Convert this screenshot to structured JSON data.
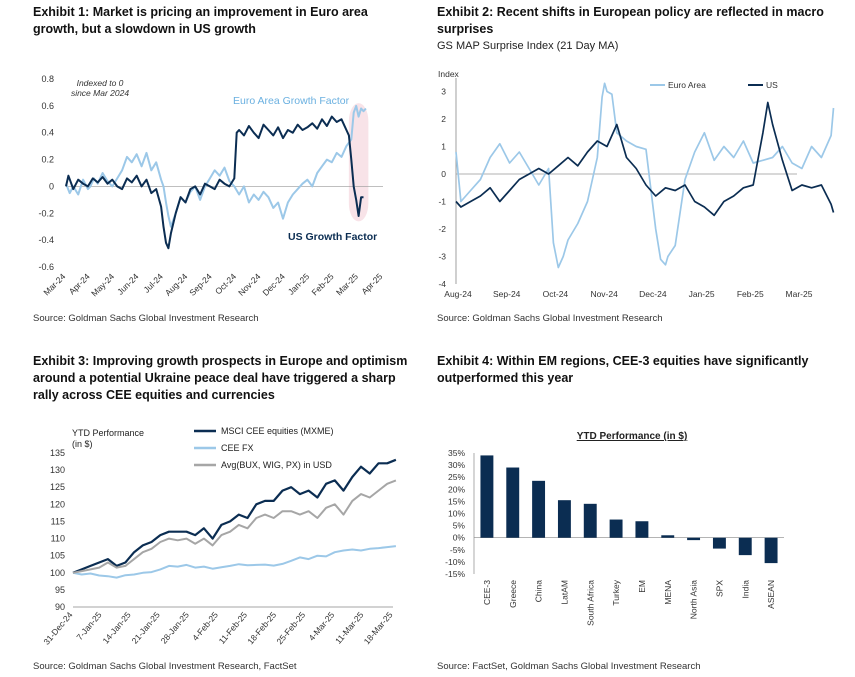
{
  "exhibits": [
    {
      "title": "Exhibit 1: Market is pricing an improvement in Euro area growth, but a slowdown in US growth",
      "source": "Source: Goldman Sachs Global Investment Research",
      "note": "Indexed to 0 since Mar 2024"
    },
    {
      "title": "Exhibit 2: Recent shifts in European policy are reflected in macro surprises",
      "subtitle": "GS MAP Surprise Index (21 Day MA)",
      "source": "Source: Goldman Sachs Global Investment Research"
    },
    {
      "title": "Exhibit 3: Improving growth prospects in Europe and optimism around a potential Ukraine peace deal have triggered a sharp rally across CEE equities and currencies",
      "source": "Source: Goldman Sachs Global Investment Research, FactSet"
    },
    {
      "title": "Exhibit 4: Within EM regions, CEE-3 equities have significantly outperformed this year",
      "source": "Source: FactSet, Goldman Sachs Global Investment Research"
    }
  ],
  "colors": {
    "navy": "#0b2d52",
    "light_blue": "#9cc8e8",
    "gray": "#a6a6a6",
    "highlight": "#f6dce2"
  },
  "chart_data": [
    {
      "type": "line",
      "title": "",
      "ylim": [
        -0.6,
        0.8
      ],
      "yticks": [
        "0.8",
        "0.6",
        "0.4",
        "0.2",
        "0",
        "-0.2",
        "-0.4",
        "-0.6"
      ],
      "xticks": [
        "Mar-24",
        "Apr-24",
        "May-24",
        "Jun-24",
        "Jul-24",
        "Aug-24",
        "Sep-24",
        "Oct-24",
        "Nov-24",
        "Dec-24",
        "Jan-25",
        "Feb-25",
        "Mar-25",
        "Apr-25"
      ],
      "annotations": [
        "Indexed to 0 since Mar 2024",
        "Euro Area Growth Factor",
        "US Growth Factor"
      ],
      "series": [
        {
          "name": "Euro Area Growth Factor",
          "color": "#9cc8e8",
          "x": [
            0,
            0.15,
            0.3,
            0.5,
            0.7,
            0.9,
            1.0,
            1.15,
            1.3,
            1.5,
            1.7,
            1.9,
            2.1,
            2.3,
            2.5,
            2.7,
            2.9,
            3.1,
            3.3,
            3.5,
            3.7,
            3.9,
            4.0,
            4.1,
            4.2,
            4.3,
            4.5,
            4.7,
            4.9,
            5.1,
            5.3,
            5.5,
            5.7,
            5.9,
            6.1,
            6.3,
            6.5,
            6.7,
            6.9,
            7.1,
            7.3,
            7.5,
            7.7,
            7.9,
            8.1,
            8.3,
            8.5,
            8.7,
            8.9,
            9.1,
            9.3,
            9.5,
            9.7,
            9.9,
            10.1,
            10.3,
            10.5,
            10.7,
            10.9,
            11.1,
            11.3,
            11.5,
            11.7,
            11.8,
            11.9,
            12.0,
            12.1,
            12.2,
            12.3
          ],
          "y": [
            0.02,
            -0.05,
            0.0,
            -0.06,
            0.05,
            -0.02,
            0.0,
            0.06,
            0.02,
            0.1,
            0.04,
            0.0,
            0.06,
            0.12,
            0.22,
            0.18,
            0.24,
            0.15,
            0.25,
            0.12,
            0.18,
            0.05,
            0.0,
            -0.12,
            -0.22,
            -0.3,
            -0.2,
            -0.08,
            -0.12,
            -0.04,
            0.0,
            -0.1,
            0.0,
            0.06,
            0.12,
            0.08,
            0.14,
            0.04,
            0.0,
            -0.06,
            0.0,
            -0.12,
            -0.06,
            -0.1,
            -0.04,
            -0.08,
            -0.16,
            -0.12,
            -0.24,
            -0.12,
            -0.06,
            -0.02,
            0.02,
            0.05,
            0.0,
            0.1,
            0.15,
            0.2,
            0.18,
            0.25,
            0.22,
            0.3,
            0.35,
            0.55,
            0.6,
            0.52,
            0.58,
            0.56,
            0.58
          ]
        },
        {
          "name": "US Growth Factor",
          "color": "#0b2d52",
          "x": [
            0,
            0.1,
            0.3,
            0.5,
            0.7,
            0.9,
            1.1,
            1.3,
            1.5,
            1.7,
            1.9,
            2.1,
            2.3,
            2.5,
            2.7,
            2.9,
            3.1,
            3.3,
            3.5,
            3.7,
            3.9,
            4.0,
            4.1,
            4.2,
            4.3,
            4.5,
            4.7,
            4.9,
            5.1,
            5.3,
            5.5,
            5.7,
            5.9,
            6.1,
            6.3,
            6.5,
            6.7,
            6.9,
            7.0,
            7.1,
            7.3,
            7.5,
            7.7,
            7.9,
            8.1,
            8.3,
            8.5,
            8.7,
            8.9,
            9.1,
            9.3,
            9.5,
            9.7,
            9.9,
            10.1,
            10.3,
            10.5,
            10.7,
            10.9,
            11.1,
            11.3,
            11.5,
            11.6,
            11.7,
            11.8,
            11.9,
            12.0,
            12.1,
            12.2
          ],
          "y": [
            0.0,
            0.08,
            -0.02,
            0.05,
            0.02,
            0.0,
            0.06,
            0.03,
            0.07,
            0.02,
            0.05,
            0.0,
            -0.02,
            0.06,
            0.03,
            0.08,
            0.0,
            0.05,
            -0.05,
            -0.02,
            -0.15,
            -0.3,
            -0.42,
            -0.46,
            -0.35,
            -0.2,
            -0.08,
            -0.12,
            -0.02,
            0.0,
            -0.06,
            0.02,
            0.0,
            -0.02,
            0.05,
            0.02,
            0.0,
            0.06,
            0.4,
            0.42,
            0.38,
            0.45,
            0.4,
            0.36,
            0.46,
            0.42,
            0.38,
            0.44,
            0.36,
            0.42,
            0.4,
            0.46,
            0.42,
            0.44,
            0.47,
            0.43,
            0.5,
            0.45,
            0.52,
            0.48,
            0.5,
            0.42,
            0.38,
            0.2,
            0.0,
            -0.1,
            -0.22,
            -0.08,
            -0.08
          ]
        }
      ],
      "highlight_range_x": [
        11.6,
        12.4
      ]
    },
    {
      "type": "line",
      "ylabel": "Index",
      "ylim": [
        -4,
        3.2
      ],
      "yticks": [
        "3",
        "2",
        "1",
        "0",
        "-1",
        "-2",
        "-3",
        "-4"
      ],
      "xticks": [
        "Aug-24",
        "Sep-24",
        "Oct-24",
        "Nov-24",
        "Dec-24",
        "Jan-25",
        "Feb-25",
        "Mar-25"
      ],
      "series": [
        {
          "name": "Euro Area",
          "color": "#9cc8e8",
          "x": [
            0,
            0.1,
            0.3,
            0.5,
            0.7,
            0.9,
            1.1,
            1.3,
            1.5,
            1.7,
            1.9,
            2.0,
            2.1,
            2.2,
            2.3,
            2.5,
            2.7,
            2.9,
            3.0,
            3.05,
            3.1,
            3.2,
            3.3,
            3.5,
            3.7,
            3.9,
            4.1,
            4.2,
            4.3,
            4.35,
            4.5,
            4.7,
            4.9,
            5.1,
            5.3,
            5.5,
            5.7,
            5.9,
            6.1,
            6.3,
            6.5,
            6.7,
            6.9,
            7.1,
            7.3,
            7.5,
            7.7,
            7.75
          ],
          "y": [
            0.8,
            -1.0,
            -0.6,
            -0.2,
            0.6,
            1.1,
            0.4,
            0.8,
            0.2,
            -0.4,
            0.2,
            -2.5,
            -3.4,
            -3.0,
            -2.4,
            -1.8,
            -1.0,
            0.6,
            2.8,
            3.3,
            3.0,
            2.9,
            1.5,
            1.2,
            1.0,
            0.9,
            -2.0,
            -3.1,
            -3.3,
            -3.0,
            -2.6,
            -0.2,
            0.8,
            1.5,
            0.5,
            1.0,
            0.6,
            1.2,
            0.4,
            0.5,
            0.6,
            1.0,
            0.4,
            0.2,
            1.0,
            0.6,
            1.4,
            2.4
          ]
        },
        {
          "name": "US",
          "color": "#0b2d52",
          "x": [
            0,
            0.1,
            0.3,
            0.5,
            0.7,
            0.9,
            1.1,
            1.3,
            1.5,
            1.7,
            1.9,
            2.1,
            2.3,
            2.5,
            2.7,
            2.9,
            3.1,
            3.3,
            3.5,
            3.7,
            3.9,
            4.1,
            4.3,
            4.5,
            4.7,
            4.9,
            5.1,
            5.3,
            5.5,
            5.7,
            5.9,
            6.1,
            6.3,
            6.4,
            6.5,
            6.7,
            6.9,
            7.1,
            7.3,
            7.5,
            7.7,
            7.75
          ],
          "y": [
            -1.0,
            -1.2,
            -1.0,
            -0.8,
            -0.5,
            -1.0,
            -0.6,
            -0.2,
            0.0,
            0.2,
            0.0,
            0.3,
            0.6,
            0.3,
            0.8,
            1.2,
            1.0,
            1.8,
            0.6,
            0.2,
            -0.4,
            -0.8,
            -0.5,
            -0.6,
            -0.4,
            -1.0,
            -1.2,
            -1.5,
            -1.0,
            -0.8,
            -0.5,
            -0.4,
            1.5,
            2.6,
            1.8,
            0.5,
            -0.6,
            -0.4,
            -0.5,
            -0.4,
            -1.1,
            -1.4
          ]
        }
      ]
    },
    {
      "type": "line",
      "ylabel": "YTD Performance (in $)",
      "ylim": [
        90,
        135
      ],
      "yticks": [
        "135",
        "130",
        "125",
        "120",
        "115",
        "110",
        "105",
        "100",
        "95",
        "90"
      ],
      "xticks": [
        "31-Dec-24",
        "7-Jan-25",
        "14-Jan-25",
        "21-Jan-25",
        "28-Jan-25",
        "4-Feb-25",
        "11-Feb-25",
        "18-Feb-25",
        "25-Feb-25",
        "4-Mar-25",
        "11-Mar-25",
        "18-Mar-25"
      ],
      "series": [
        {
          "name": "MSCI CEE equities (MXME)",
          "color": "#0b2d52",
          "x": [
            0,
            0.3,
            0.6,
            0.9,
            1.2,
            1.5,
            1.8,
            2.1,
            2.4,
            2.7,
            3.0,
            3.3,
            3.6,
            3.9,
            4.2,
            4.5,
            4.8,
            5.1,
            5.4,
            5.7,
            6.0,
            6.3,
            6.6,
            6.9,
            7.2,
            7.5,
            7.8,
            8.1,
            8.4,
            8.7,
            9.0,
            9.3,
            9.6,
            9.9,
            10.2,
            10.5,
            10.8,
            11.1
          ],
          "y": [
            100,
            101,
            102,
            103,
            104,
            102,
            103,
            106,
            108,
            109,
            111,
            112,
            112,
            112,
            111,
            113,
            110,
            114,
            115,
            117,
            116,
            120,
            121,
            121,
            124,
            125,
            123,
            124,
            122,
            126,
            127,
            124,
            128,
            131,
            129,
            132,
            132,
            133
          ]
        },
        {
          "name": "CEE FX",
          "color": "#9cc8e8",
          "x": [
            0,
            0.3,
            0.6,
            0.9,
            1.2,
            1.5,
            1.8,
            2.1,
            2.4,
            2.7,
            3.0,
            3.3,
            3.6,
            3.9,
            4.2,
            4.5,
            4.8,
            5.1,
            5.4,
            5.7,
            6.0,
            6.3,
            6.6,
            6.9,
            7.2,
            7.5,
            7.8,
            8.1,
            8.4,
            8.7,
            9.0,
            9.3,
            9.6,
            9.9,
            10.2,
            10.5,
            10.8,
            11.1
          ],
          "y": [
            100,
            99.5,
            99.8,
            99.2,
            99.0,
            98.6,
            99.3,
            99.5,
            100,
            100.2,
            101,
            102,
            101.8,
            102.3,
            101.5,
            101.8,
            101.2,
            101.6,
            102,
            102.5,
            102.2,
            102.3,
            102.4,
            102.1,
            102.6,
            103.5,
            104.5,
            104,
            105,
            104.8,
            106,
            106.5,
            106.8,
            106.5,
            107,
            107.2,
            107.5,
            107.8
          ]
        },
        {
          "name": "Avg(BUX, WIG, PX) in USD",
          "color": "#a6a6a6",
          "x": [
            0,
            0.3,
            0.6,
            0.9,
            1.2,
            1.5,
            1.8,
            2.1,
            2.4,
            2.7,
            3.0,
            3.3,
            3.6,
            3.9,
            4.2,
            4.5,
            4.8,
            5.1,
            5.4,
            5.7,
            6.0,
            6.3,
            6.6,
            6.9,
            7.2,
            7.5,
            7.8,
            8.1,
            8.4,
            8.7,
            9.0,
            9.3,
            9.6,
            9.9,
            10.2,
            10.5,
            10.8,
            11.1
          ],
          "y": [
            100,
            100.5,
            101,
            101.5,
            103,
            101.5,
            102,
            104,
            106,
            107,
            109,
            110,
            109.5,
            110,
            108.5,
            110,
            108,
            111,
            112,
            114,
            113,
            116,
            117,
            116,
            118,
            118,
            117,
            118,
            116,
            119,
            120,
            117,
            121,
            123,
            122,
            124,
            126,
            127
          ]
        }
      ]
    },
    {
      "type": "bar",
      "title": "YTD Performance (in $)",
      "ylim": [
        -15,
        35
      ],
      "yticks": [
        "35%",
        "30%",
        "25%",
        "20%",
        "15%",
        "10%",
        "5%",
        "0%",
        "-5%",
        "-10%",
        "-15%"
      ],
      "categories": [
        "CEE-3",
        "Greece",
        "China",
        "LatAM",
        "South Africa",
        "Turkey",
        "EM",
        "MENA",
        "North Asia",
        "SPX",
        "India",
        "ASEAN"
      ],
      "values": [
        34,
        29,
        23.5,
        15.5,
        14,
        7.5,
        6.8,
        1.0,
        -1.0,
        -4.5,
        -7.2,
        -10.5
      ],
      "color": "#0b2d52"
    }
  ]
}
